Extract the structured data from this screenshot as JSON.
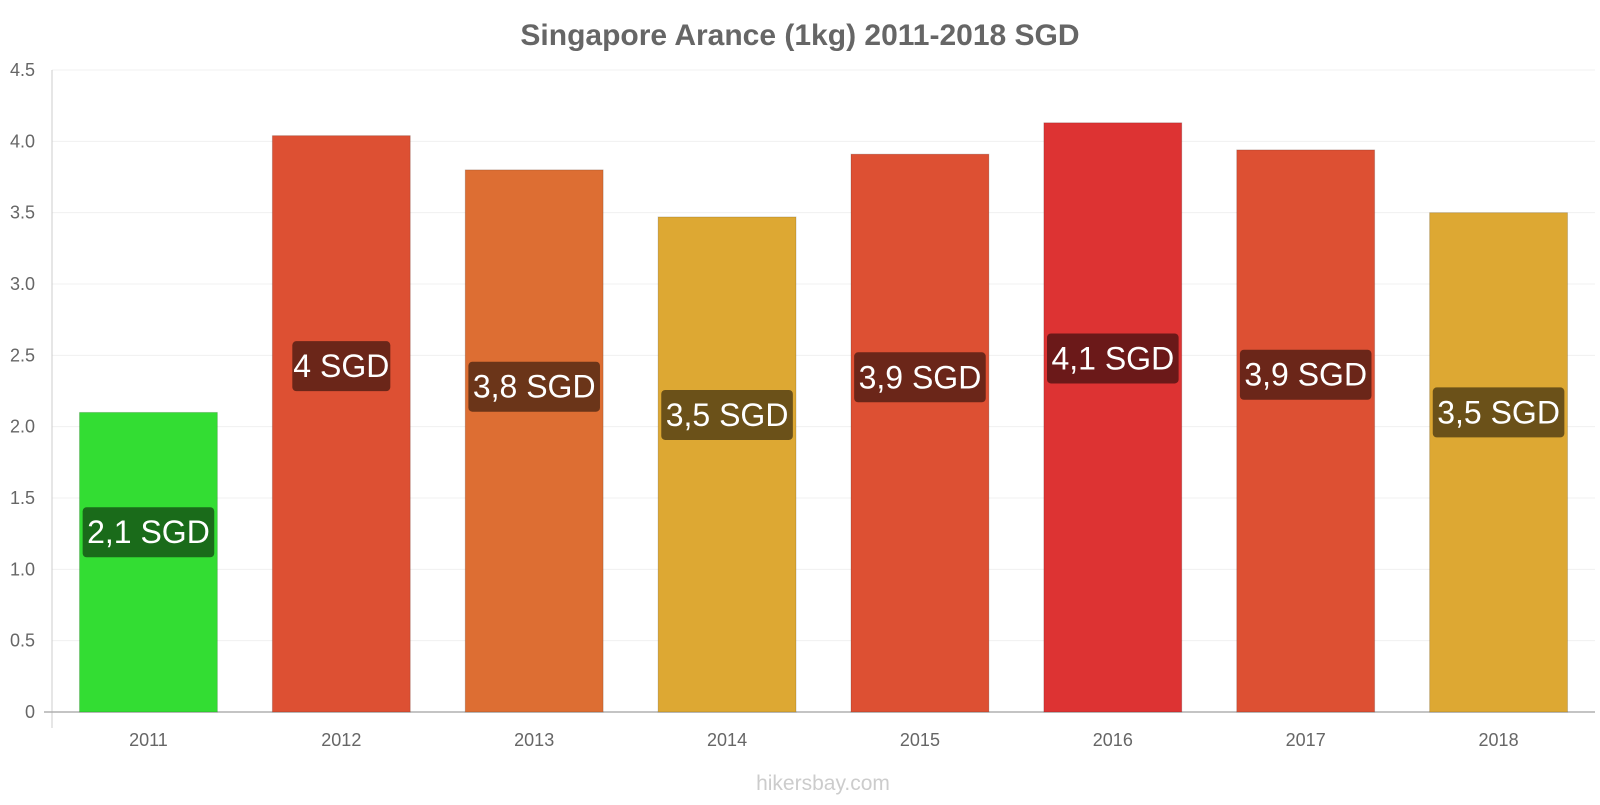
{
  "chart_data": {
    "type": "bar",
    "title": "Singapore Arance (1kg) 2011-2018 SGD",
    "xlabel": "",
    "ylabel": "",
    "categories": [
      "2011",
      "2012",
      "2013",
      "2014",
      "2015",
      "2016",
      "2017",
      "2018"
    ],
    "values": [
      2.1,
      4.04,
      3.8,
      3.47,
      3.91,
      4.13,
      3.94,
      3.5
    ],
    "value_labels": [
      "2,1 SGD",
      "4 SGD",
      "3,8 SGD",
      "3,5 SGD",
      "3,9 SGD",
      "4,1 SGD",
      "3,9 SGD",
      "3,5 SGD"
    ],
    "bar_colors": [
      "#33dd33",
      "#dd5033",
      "#dd6e33",
      "#dda833",
      "#dd5033",
      "#dd3333",
      "#dd5033",
      "#dda833"
    ],
    "label_colors": [
      "#1a6b1a",
      "#6b2619",
      "#6b3519",
      "#6b5119",
      "#6b2619",
      "#6b1919",
      "#6b2619",
      "#6b5119"
    ],
    "y_ticks": [
      "0",
      "0.5",
      "1.0",
      "1.5",
      "2.0",
      "2.5",
      "3.0",
      "3.5",
      "4.0",
      "4.5"
    ],
    "y_tick_values": [
      0,
      0.5,
      1.0,
      1.5,
      2.0,
      2.5,
      3.0,
      3.5,
      4.0,
      4.5
    ],
    "ylim": [
      0,
      4.5
    ],
    "grid": true,
    "legend": "none"
  },
  "watermark": "hikersbay.com"
}
